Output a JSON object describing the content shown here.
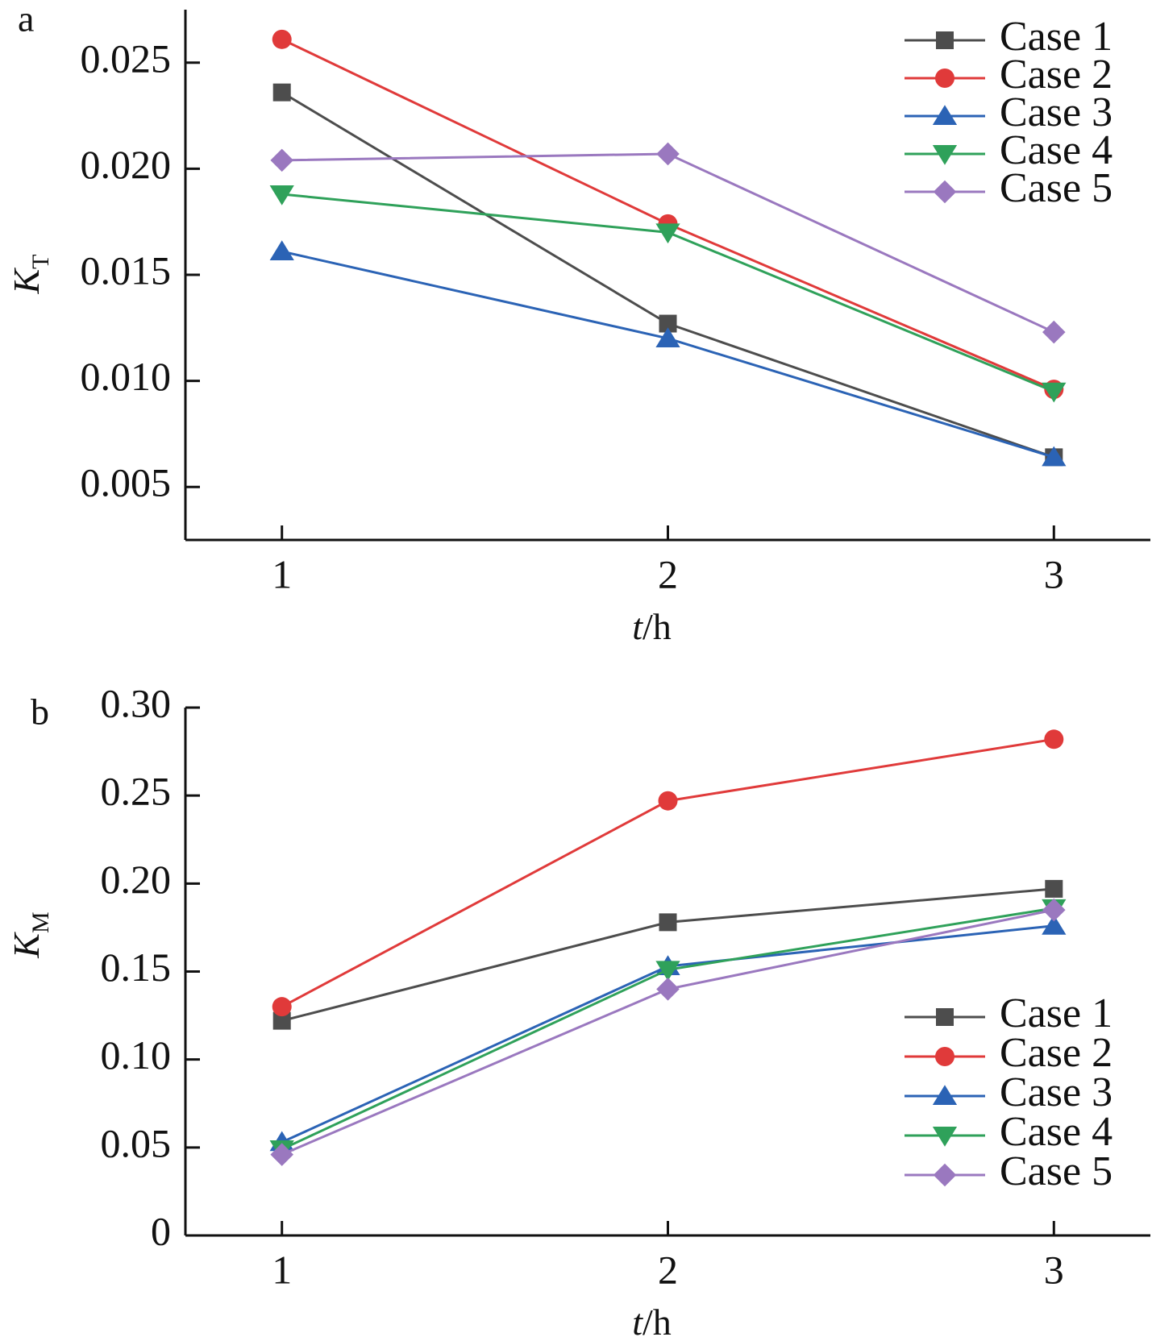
{
  "chart_data": [
    {
      "type": "line",
      "panel_label": "a",
      "ylabel_main": "K",
      "ylabel_sub": "T",
      "xlabel_italic": "t",
      "xlabel_rest": "/h",
      "x": [
        1,
        2,
        3
      ],
      "x_ticks": [
        "1",
        "2",
        "3"
      ],
      "y_ticks": [
        "0.005",
        "0.010",
        "0.015",
        "0.020",
        "0.025"
      ],
      "y_tick_values": [
        0.005,
        0.01,
        0.015,
        0.02,
        0.025
      ],
      "ylim": [
        0.0025,
        0.0275
      ],
      "xlim": [
        0.75,
        3.25
      ],
      "grid": false,
      "legend_position": "top-right",
      "series": [
        {
          "name": "Case 1",
          "marker": "square",
          "color": "#4d4d4d",
          "values": [
            0.0236,
            0.0127,
            0.0064
          ]
        },
        {
          "name": "Case 2",
          "marker": "circle",
          "color": "#e03a3a",
          "values": [
            0.0261,
            0.0174,
            0.0096
          ]
        },
        {
          "name": "Case 3",
          "marker": "triangle-up",
          "color": "#2b63b5",
          "values": [
            0.0161,
            0.012,
            0.0064
          ]
        },
        {
          "name": "Case 4",
          "marker": "triangle-down",
          "color": "#2fa15a",
          "values": [
            0.0188,
            0.017,
            0.0095
          ]
        },
        {
          "name": "Case 5",
          "marker": "diamond",
          "color": "#9a78bf",
          "values": [
            0.0204,
            0.0207,
            0.0123
          ]
        }
      ]
    },
    {
      "type": "line",
      "panel_label": "b",
      "ylabel_main": "K",
      "ylabel_sub": "M",
      "xlabel_italic": "t",
      "xlabel_rest": "/h",
      "x": [
        1,
        2,
        3
      ],
      "x_ticks": [
        "1",
        "2",
        "3"
      ],
      "y_ticks": [
        "0",
        "0.05",
        "0.10",
        "0.15",
        "0.20",
        "0.25",
        "0.30"
      ],
      "y_tick_values": [
        0,
        0.05,
        0.1,
        0.15,
        0.2,
        0.25,
        0.3
      ],
      "ylim": [
        0,
        0.3
      ],
      "xlim": [
        0.75,
        3.25
      ],
      "grid": false,
      "legend_position": "bottom-right",
      "series": [
        {
          "name": "Case 1",
          "marker": "square",
          "color": "#4d4d4d",
          "values": [
            0.122,
            0.178,
            0.197
          ]
        },
        {
          "name": "Case 2",
          "marker": "circle",
          "color": "#e03a3a",
          "values": [
            0.13,
            0.247,
            0.282
          ]
        },
        {
          "name": "Case 3",
          "marker": "triangle-up",
          "color": "#2b63b5",
          "values": [
            0.053,
            0.153,
            0.176
          ]
        },
        {
          "name": "Case 4",
          "marker": "triangle-down",
          "color": "#2fa15a",
          "values": [
            0.049,
            0.151,
            0.186
          ]
        },
        {
          "name": "Case 5",
          "marker": "diamond",
          "color": "#9a78bf",
          "values": [
            0.046,
            0.14,
            0.185
          ]
        }
      ]
    }
  ]
}
